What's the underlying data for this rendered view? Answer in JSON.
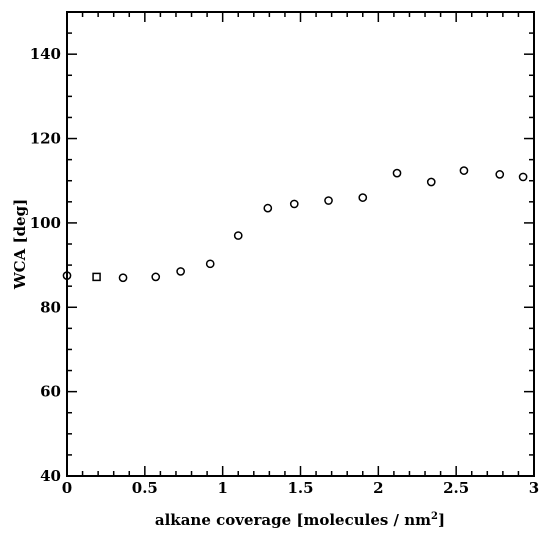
{
  "chart_data": {
    "type": "scatter",
    "title": "",
    "xlabel": "alkane coverage [molecules / nm",
    "xlabel_superscript": "2",
    "xlabel_suffix": "]",
    "ylabel": "WCA [deg]",
    "xlim": [
      0,
      3
    ],
    "ylim": [
      40,
      150
    ],
    "x_ticks": [
      "0",
      "0.5",
      "1",
      "1.5",
      "2",
      "2.5",
      "3"
    ],
    "y_ticks": [
      "40",
      "60",
      "80",
      "100",
      "120",
      "140"
    ],
    "grid": false,
    "legend": "none",
    "series": [
      {
        "marker": "circle",
        "points": [
          {
            "x": 0.0,
            "y": 87.5
          },
          {
            "x": 0.36,
            "y": 87.0
          },
          {
            "x": 0.57,
            "y": 87.2
          },
          {
            "x": 0.73,
            "y": 88.5
          },
          {
            "x": 0.92,
            "y": 90.3
          },
          {
            "x": 1.1,
            "y": 97.0
          },
          {
            "x": 1.29,
            "y": 103.5
          },
          {
            "x": 1.46,
            "y": 104.5
          },
          {
            "x": 1.68,
            "y": 105.3
          },
          {
            "x": 1.9,
            "y": 106.0
          },
          {
            "x": 2.12,
            "y": 111.8
          },
          {
            "x": 2.34,
            "y": 109.7
          },
          {
            "x": 2.55,
            "y": 112.4
          },
          {
            "x": 2.78,
            "y": 111.5
          },
          {
            "x": 2.93,
            "y": 110.9
          }
        ]
      },
      {
        "marker": "square",
        "points": [
          {
            "x": 0.19,
            "y": 87.2
          }
        ]
      }
    ]
  }
}
